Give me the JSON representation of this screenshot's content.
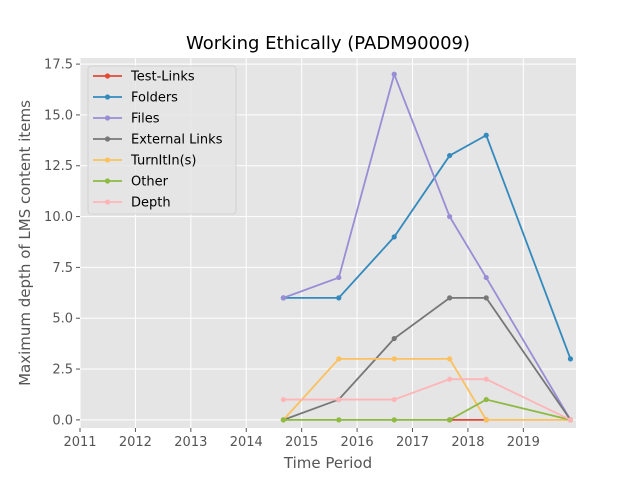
{
  "chart_data": {
    "type": "line",
    "title": "Working Ethically (PADM90009)",
    "xlabel": "Time Period",
    "ylabel": "Maximum depth of LMS content items",
    "xlim": [
      2011,
      2019.95
    ],
    "ylim": [
      -0.4,
      17.8
    ],
    "xticks": [
      2011,
      2012,
      2013,
      2014,
      2015,
      2016,
      2017,
      2018,
      2019
    ],
    "yticks": [
      0.0,
      2.5,
      5.0,
      7.5,
      10.0,
      12.5,
      15.0,
      17.5
    ],
    "ytick_labels": [
      "0.0",
      "2.5",
      "5.0",
      "7.5",
      "10.0",
      "12.5",
      "15.0",
      "17.5"
    ],
    "x": [
      2014.67,
      2015.67,
      2016.67,
      2017.67,
      2018.33,
      2019.85
    ],
    "grid": true,
    "legend_position": "upper-left",
    "series": [
      {
        "name": "Test-Links",
        "color": "#E24A33",
        "values": [
          null,
          null,
          null,
          0,
          0,
          null
        ]
      },
      {
        "name": "Folders",
        "color": "#348ABD",
        "values": [
          6,
          6,
          9,
          13,
          14,
          3
        ]
      },
      {
        "name": "Files",
        "color": "#988ED5",
        "values": [
          6,
          7,
          17,
          10,
          7,
          0
        ]
      },
      {
        "name": "External Links",
        "color": "#777777",
        "values": [
          0,
          1,
          4,
          6,
          6,
          0
        ]
      },
      {
        "name": "TurnItIn(s)",
        "color": "#FBC15E",
        "values": [
          0,
          3,
          3,
          3,
          0,
          0
        ]
      },
      {
        "name": "Other",
        "color": "#8EBA42",
        "values": [
          0,
          0,
          0,
          0,
          1,
          0
        ]
      },
      {
        "name": "Depth",
        "color": "#FFB5B8",
        "values": [
          1,
          1,
          1,
          2,
          2,
          0
        ]
      }
    ]
  }
}
